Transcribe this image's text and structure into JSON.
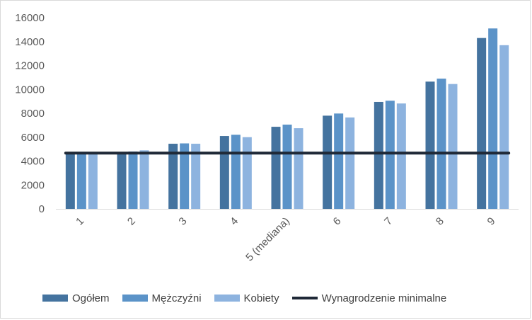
{
  "chart_data": {
    "type": "bar",
    "categories": [
      "1",
      "2",
      "3",
      "4",
      "5 (mediana)",
      "6",
      "7",
      "8",
      "9"
    ],
    "series": [
      {
        "name": "Ogółem",
        "color": "#44739f",
        "values": [
          4700,
          4750,
          5450,
          6100,
          6870,
          7800,
          8950,
          10650,
          14300
        ]
      },
      {
        "name": "Mężczyźni",
        "color": "#5b93c8",
        "values": [
          4750,
          4800,
          5480,
          6200,
          7050,
          7980,
          9050,
          10900,
          15100
        ]
      },
      {
        "name": "Kobiety",
        "color": "#8db3df",
        "values": [
          4700,
          4900,
          5450,
          6000,
          6750,
          7650,
          8820,
          10450,
          13700
        ]
      }
    ],
    "line": {
      "name": "Wynagrodzenie minimalne",
      "color": "#1f2937",
      "value": 4666
    },
    "yticks": [
      "0",
      "2000",
      "4000",
      "6000",
      "8000",
      "10000",
      "12000",
      "14000",
      "16000"
    ],
    "ylim": [
      0,
      16000
    ],
    "grid": false,
    "legend_position": "bottom"
  }
}
